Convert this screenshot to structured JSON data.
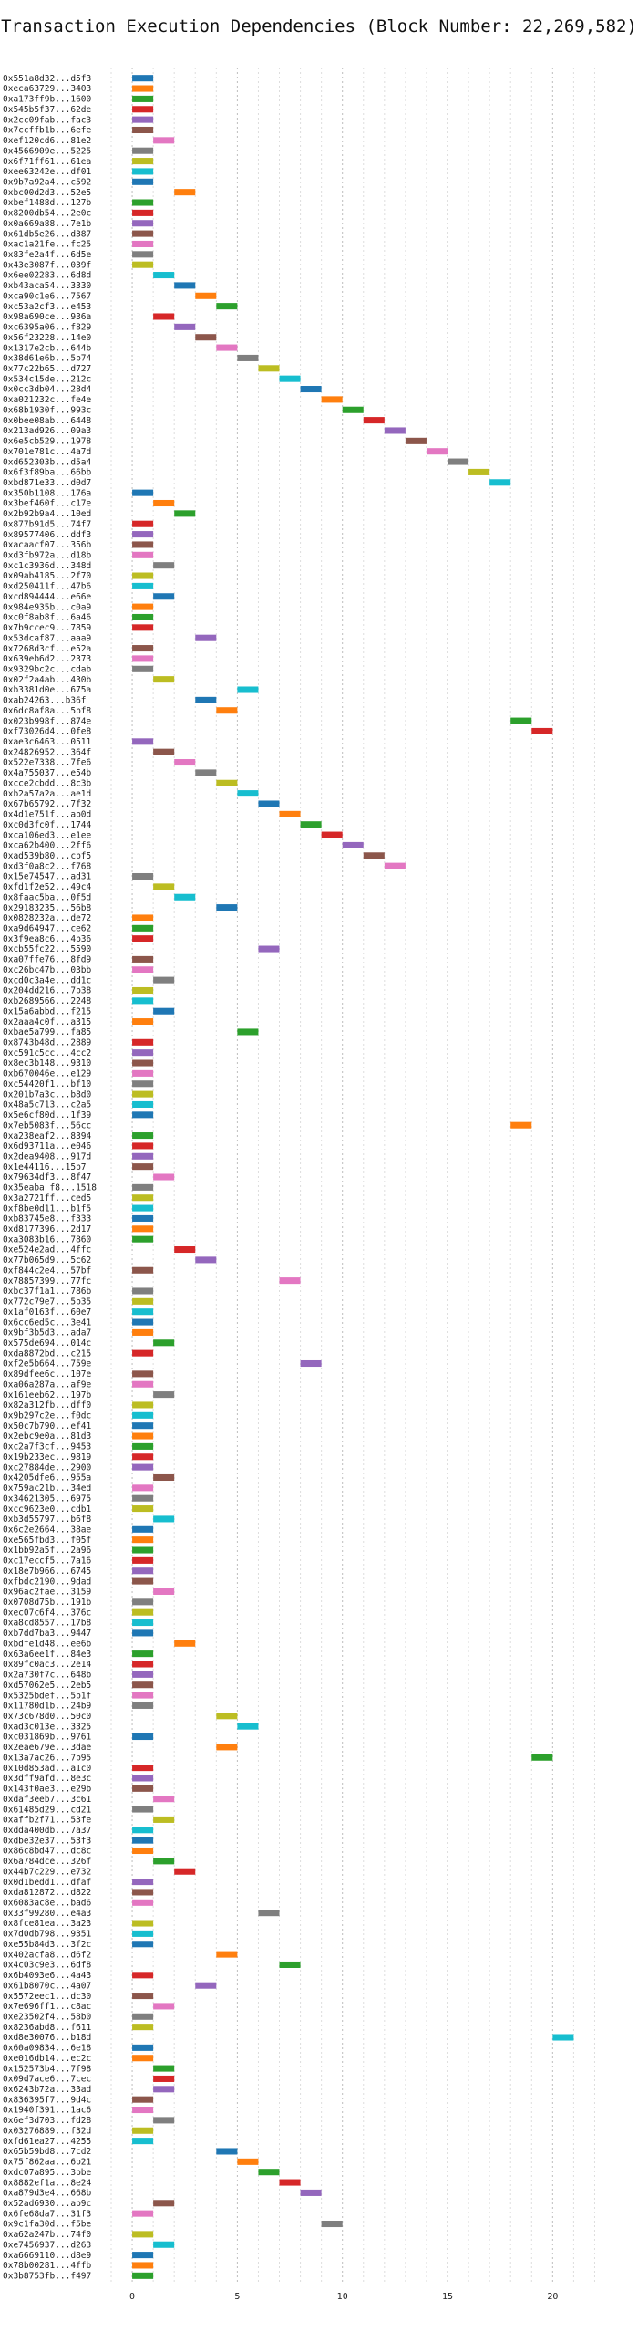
{
  "title": "Transaction Execution Dependencies (Block Number: 22,269,582)",
  "chart_data": {
    "type": "bar",
    "orientation": "horizontal",
    "title": "Transaction Execution Dependencies (Block Number: 22,269,582)",
    "xlabel": "",
    "ylabel": "",
    "xlim": [
      -1,
      22.5
    ],
    "xticks": [
      0,
      5,
      10,
      15,
      20
    ],
    "grid": "vertical dotted",
    "legend": "none",
    "palette": [
      "#1f77b4",
      "#ff7f0e",
      "#2ca02c",
      "#d62728",
      "#9467bd",
      "#8c564b",
      "#e377c2",
      "#7f7f7f",
      "#bcbd22",
      "#17becf"
    ],
    "categories": [
      "0x551a8d32...d5f3",
      "0xeca63729...3403",
      "0xa173ff9b...1600",
      "0x545b5f37...62de",
      "0x2cc09fab...fac3",
      "0x7ccffb1b...6efe",
      "0xef120cd6...81e2",
      "0x4566909e...5225",
      "0x6f71ff61...61ea",
      "0xee63242e...df01",
      "0x9b7a92a4...c592",
      "0xbc00d2d3...52e5",
      "0xbef1488d...127b",
      "0x8200db54...2e0c",
      "0x0a669a88...7e1b",
      "0x61db5e26...d387",
      "0xac1a21fe...fc25",
      "0x83fe2a4f...6d5e",
      "0x43e3087f...039f",
      "0x6ee02283...6d8d",
      "0xb43aca54...3330",
      "0xca90c1e6...7567",
      "0xc53a2cf3...e453",
      "0x98a690ce...936a",
      "0xc6395a06...f829",
      "0x56f23228...14e0",
      "0x1317e2cb...644b",
      "0x38d61e6b...5b74",
      "0x77c22b65...d727",
      "0x534c15de...212c",
      "0x0cc3db04...28d4",
      "0xa021232c...fe4e",
      "0x68b1930f...993c",
      "0x0bee08ab...6448",
      "0x213ad926...09a3",
      "0x6e5cb529...1978",
      "0x701e781c...4a7d",
      "0xd652303b...d5a4",
      "0x6f3f89ba...66bb",
      "0xbd871e33...d0d7",
      "0x350b1108...176a",
      "0x3bef460f...c17e",
      "0x2b92b9a4...10ed",
      "0x877b91d5...74f7",
      "0x89577406...ddf3",
      "0xacaacf07...356b",
      "0xd3fb972a...d18b",
      "0xc1c3936d...348d",
      "0x09ab4185...2f70",
      "0xd250411f...47b6",
      "0xcd894444...e66e",
      "0x984e935b...c0a9",
      "0xc0f8ab8f...6a46",
      "0x7b9ccec9...7859",
      "0x53dcaf87...aaa9",
      "0x7268d3cf...e52a",
      "0x639eb6d2...2373",
      "0x9329bc2c...cdab",
      "0x02f2a4ab...430b",
      "0xb3381d0e...675a",
      "0xab24263...b36f",
      "0x6dc8af8a...5bf8",
      "0x023b998f...874e",
      "0xf73026d4...0fe8",
      "0xae3c6463...0511",
      "0x24826952...364f",
      "0x522e7338...7fe6",
      "0x4a755037...e54b",
      "0xcce2cbdd...8c3b",
      "0xb2a57a2a...ae1d",
      "0x67b65792...7f32",
      "0x4d1e751f...ab0d",
      "0xc0d3fc0f...1744",
      "0xca106ed3...e1ee",
      "0xca62b400...2ff6",
      "0xad539b80...cbf5",
      "0xd3f0a8c2...f768",
      "0x15e74547...ad31",
      "0xfd1f2e52...49c4",
      "0x8faac5ba...0f5d",
      "0x29183235...56b8",
      "0x0828232a...de72",
      "0xa9d64947...ce62",
      "0x3f9ea8c6...4b36",
      "0xcb55fc22...5590",
      "0xa07ffe76...8fd9",
      "0xc26bc47b...03bb",
      "0xcd0c3a4e...dd1c",
      "0x204dd216...7b38",
      "0xb2689566...2248",
      "0x15a6abbd...f215",
      "0x2aaa4c0f...a315",
      "0xbae5a799...fa85",
      "0x8743b48d...2889",
      "0xc591c5cc...4cc2",
      "0x8ec3b148...9310",
      "0xb670046e...e129",
      "0xc54420f1...bf10",
      "0x201b7a3c...b8d0",
      "0x48a5c713...c2a5",
      "0x5e6cf80d...1f39",
      "0x7eb5083f...56cc",
      "0xa238eaf2...8394",
      "0x6d93711a...e046",
      "0x2dea9408...917d",
      "0x1e44116...15b7",
      "0x79634df3...8f47",
      "0x35eaba f8...1518",
      "0x3a2721ff...ced5",
      "0xf8be0d11...b1f5",
      "0xb83745e8...f333",
      "0xd8177396...2d17",
      "0xa3083b16...7860",
      "0xe524e2ad...4ffc",
      "0x77b065d9...5c62",
      "0xf844c2e4...57bf",
      "0x78857399...77fc",
      "0xbc37f1a1...786b",
      "0x772c79e7...5b35",
      "0x1af0163f...60e7",
      "0x6cc6ed5c...3e41",
      "0x9bf3b5d3...ada7",
      "0x575de694...014c",
      "0xda8872bd...c215",
      "0xf2e5b664...759e",
      "0x89dfee6c...107e",
      "0xa06a287a...af9e",
      "0x161eeb62...197b",
      "0x82a312fb...dff0",
      "0x9b297c2e...f0dc",
      "0x50c7b790...ef41",
      "0x2ebc9e0a...81d3",
      "0xc2a7f3cf...9453",
      "0x19b233ec...9819",
      "0xc27884de...2900",
      "0x4205dfe6...955a",
      "0x759ac21b...34ed",
      "0x34621305...6975",
      "0xcc9623e0...cdb1",
      "0xb3d55797...b6f8",
      "0x6c2e2664...38ae",
      "0xe565fbd3...f05f",
      "0x1bb92a5f...2a96",
      "0xc17eccf5...7a16",
      "0x18e7b966...6745",
      "0xfbdc2190...9dad",
      "0x96ac2fae...3159",
      "0x0708d75b...191b",
      "0xec07c6f4...376c",
      "0xa8cd8557...17b8",
      "0xb7dd7ba3...9447",
      "0xbdfe1d48...ee6b",
      "0x63a6ee1f...84e3",
      "0x89fc0ac3...2e14",
      "0x2a730f7c...648b",
      "0xd57062e5...2eb5",
      "0x5325bdef...5b1f",
      "0x11780d1b...24b9",
      "0x73c678d0...50c0",
      "0xad3c013e...3325",
      "0xc031869b...9761",
      "0x2eae679e...3dae",
      "0x13a7ac26...7b95",
      "0x10d853ad...a1c0",
      "0x3dff9afd...8e3c",
      "0x143f0ae3...e29b",
      "0xdaf3eeb7...3c61",
      "0x61485d29...cd21",
      "0xaffb2f71...53fe",
      "0xdda400db...7a37",
      "0xdbe32e37...53f3",
      "0x86c8bd47...dc8c",
      "0x6a784dce...326f",
      "0x44b7c229...e732",
      "0x0d1bedd1...dfaf",
      "0xda812872...d822",
      "0x6083ac8e...bad6",
      "0x33f99280...e4a3",
      "0x8fce81ea...3a23",
      "0x7d0db798...9351",
      "0xe55b84d3...3f2c",
      "0x402acfa8...d6f2",
      "0x4c03c9e3...6df8",
      "0x6b4093e6...4a43",
      "0x61b8070c...4a07",
      "0x5572eec1...dc30",
      "0x7e696ff1...c8ac",
      "0xe23502f4...58b0",
      "0x8236abd8...f611",
      "0xd8e30076...b18d",
      "0x60a09834...6e18",
      "0xe016db14...ec2c",
      "0x152573b4...7f98",
      "0x09d7ace6...7cec",
      "0x6243b72a...33ad",
      "0x836395f7...9d4c",
      "0x1940f391...1ac6",
      "0x6ef3d703...fd28",
      "0x03276889...f32d",
      "0xfd61ea27...4255",
      "0x65b59bd8...7cd2",
      "0x75f862aa...6b21",
      "0xdc07a895...3bbe",
      "0x8882ef1a...8e24",
      "0xa879d3e4...668b",
      "0x52ad6930...ab9c",
      "0x6fe68da7...31f3",
      "0x9c1fa30d...f5be",
      "0xa62a247b...74f0",
      "0xe7456937...d263",
      "0xa6669110...d8e9",
      "0x78b00281...4ffb",
      "0x3b8753fb...f497"
    ],
    "series": [
      {
        "starts": [
          0,
          0,
          0,
          0,
          0,
          0,
          1,
          0,
          0,
          0,
          0,
          2,
          0,
          0,
          0,
          0,
          0,
          0,
          0,
          1,
          2,
          3,
          4,
          1,
          2,
          3,
          4,
          5,
          6,
          7,
          8,
          9,
          10,
          11,
          12,
          13,
          14,
          15,
          16,
          17,
          0,
          1,
          2,
          0,
          0,
          0,
          0,
          1,
          0,
          0,
          1,
          0,
          0,
          0,
          3,
          0,
          0,
          0,
          1,
          5,
          3,
          4,
          18,
          19,
          0,
          1,
          2,
          3,
          4,
          5,
          6,
          7,
          8,
          9,
          10,
          11,
          12,
          0,
          1,
          2,
          4,
          0,
          0,
          0,
          6,
          0,
          0,
          1,
          0,
          0,
          1,
          0,
          5,
          0,
          0,
          0,
          0,
          0,
          0,
          0,
          0,
          18,
          0,
          0,
          0,
          0,
          1,
          0,
          0,
          0,
          0,
          0,
          0,
          2,
          3,
          0,
          7,
          0,
          0,
          0,
          0,
          0,
          1,
          0,
          8,
          0,
          0,
          1,
          0,
          0,
          0,
          0,
          0,
          0,
          0,
          1,
          0,
          0,
          0,
          1,
          0,
          0,
          0,
          0,
          0,
          0,
          1,
          0,
          0,
          0,
          0,
          2,
          0,
          0,
          0,
          0,
          0,
          0,
          4,
          5,
          0,
          4,
          19,
          0,
          0,
          0,
          1,
          0,
          1,
          0,
          0,
          0,
          1,
          2,
          0,
          0,
          0,
          6,
          0,
          0,
          0,
          4,
          7,
          0,
          3,
          0,
          1,
          0,
          0,
          20,
          0,
          0,
          1,
          1,
          1,
          0,
          0,
          1,
          0,
          0,
          4,
          5,
          6,
          7,
          8,
          1,
          0,
          9,
          0,
          1,
          0,
          0,
          0
        ],
        "durations": [
          1,
          1,
          1,
          1,
          1,
          1,
          1,
          1,
          1,
          1,
          1,
          1,
          1,
          1,
          1,
          1,
          1,
          1,
          1,
          1,
          1,
          1,
          1,
          1,
          1,
          1,
          1,
          1,
          1,
          1,
          1,
          1,
          1,
          1,
          1,
          1,
          1,
          1,
          1,
          1,
          1,
          1,
          1,
          1,
          1,
          1,
          1,
          1,
          1,
          1,
          1,
          1,
          1,
          1,
          1,
          1,
          1,
          1,
          1,
          1,
          1,
          1,
          1,
          1,
          1,
          1,
          1,
          1,
          1,
          1,
          1,
          1,
          1,
          1,
          1,
          1,
          1,
          1,
          1,
          1,
          1,
          1,
          1,
          1,
          1,
          1,
          1,
          1,
          1,
          1,
          1,
          1,
          1,
          1,
          1,
          1,
          1,
          1,
          1,
          1,
          1,
          1,
          1,
          1,
          1,
          1,
          1,
          1,
          1,
          1,
          1,
          1,
          1,
          1,
          1,
          1,
          1,
          1,
          1,
          1,
          1,
          1,
          1,
          1,
          1,
          1,
          1,
          1,
          1,
          1,
          1,
          1,
          1,
          1,
          1,
          1,
          1,
          1,
          1,
          1,
          1,
          1,
          1,
          1,
          1,
          1,
          1,
          1,
          1,
          1,
          1,
          1,
          1,
          1,
          1,
          1,
          1,
          1,
          1,
          1,
          1,
          1,
          1,
          1,
          1,
          1,
          1,
          1,
          1,
          1,
          1,
          1,
          1,
          1,
          1,
          1,
          1,
          1,
          1,
          1,
          1,
          1,
          1,
          1,
          1,
          1,
          1,
          1,
          1,
          1,
          1,
          1,
          1,
          1,
          1,
          1,
          1,
          1,
          1,
          1,
          1,
          1,
          1,
          1,
          1,
          1,
          1,
          1,
          1,
          1,
          1,
          1,
          1
        ],
        "colors": [
          "#1f77b4",
          "#ff7f0e",
          "#2ca02c",
          "#d62728",
          "#9467bd",
          "#8c564b",
          "#e377c2",
          "#7f7f7f",
          "#bcbd22",
          "#17becf",
          "#1f77b4",
          "#ff7f0e",
          "#2ca02c",
          "#d62728",
          "#9467bd",
          "#8c564b",
          "#e377c2",
          "#7f7f7f",
          "#bcbd22",
          "#17becf",
          "#1f77b4",
          "#ff7f0e",
          "#2ca02c",
          "#d62728",
          "#9467bd",
          "#8c564b",
          "#e377c2",
          "#7f7f7f",
          "#bcbd22",
          "#17becf",
          "#1f77b4",
          "#ff7f0e",
          "#2ca02c",
          "#d62728",
          "#9467bd",
          "#8c564b",
          "#e377c2",
          "#7f7f7f",
          "#bcbd22",
          "#17becf",
          "#1f77b4",
          "#ff7f0e",
          "#2ca02c",
          "#d62728",
          "#9467bd",
          "#8c564b",
          "#e377c2",
          "#7f7f7f",
          "#bcbd22",
          "#17becf",
          "#1f77b4",
          "#ff7f0e",
          "#2ca02c",
          "#d62728",
          "#9467bd",
          "#8c564b",
          "#e377c2",
          "#7f7f7f",
          "#bcbd22",
          "#17becf",
          "#1f77b4",
          "#ff7f0e",
          "#2ca02c",
          "#d62728",
          "#9467bd",
          "#8c564b",
          "#e377c2",
          "#7f7f7f",
          "#bcbd22",
          "#17becf",
          "#1f77b4",
          "#ff7f0e",
          "#2ca02c",
          "#d62728",
          "#9467bd",
          "#8c564b",
          "#e377c2",
          "#7f7f7f",
          "#bcbd22",
          "#17becf",
          "#1f77b4",
          "#ff7f0e",
          "#2ca02c",
          "#d62728",
          "#9467bd",
          "#8c564b",
          "#e377c2",
          "#7f7f7f",
          "#bcbd22",
          "#17becf",
          "#1f77b4",
          "#ff7f0e",
          "#2ca02c",
          "#d62728",
          "#9467bd",
          "#8c564b",
          "#e377c2",
          "#7f7f7f",
          "#bcbd22",
          "#17becf",
          "#1f77b4",
          "#ff7f0e",
          "#2ca02c",
          "#d62728",
          "#9467bd",
          "#8c564b",
          "#e377c2",
          "#7f7f7f",
          "#bcbd22",
          "#17becf",
          "#1f77b4",
          "#ff7f0e",
          "#2ca02c",
          "#d62728",
          "#9467bd",
          "#8c564b",
          "#e377c2",
          "#7f7f7f",
          "#bcbd22",
          "#17becf",
          "#1f77b4",
          "#ff7f0e",
          "#2ca02c",
          "#d62728",
          "#9467bd",
          "#8c564b",
          "#e377c2",
          "#7f7f7f",
          "#bcbd22",
          "#17becf",
          "#1f77b4",
          "#ff7f0e",
          "#2ca02c",
          "#d62728",
          "#9467bd",
          "#8c564b",
          "#e377c2",
          "#7f7f7f",
          "#bcbd22",
          "#17becf",
          "#1f77b4",
          "#ff7f0e",
          "#2ca02c",
          "#d62728",
          "#9467bd",
          "#8c564b",
          "#e377c2",
          "#7f7f7f",
          "#bcbd22",
          "#17becf",
          "#1f77b4",
          "#ff7f0e",
          "#2ca02c",
          "#d62728",
          "#9467bd",
          "#8c564b",
          "#e377c2",
          "#7f7f7f",
          "#bcbd22",
          "#17becf",
          "#1f77b4",
          "#ff7f0e",
          "#2ca02c",
          "#d62728",
          "#9467bd",
          "#8c564b",
          "#e377c2",
          "#7f7f7f",
          "#bcbd22",
          "#17becf",
          "#1f77b4",
          "#ff7f0e",
          "#2ca02c",
          "#d62728",
          "#9467bd",
          "#8c564b",
          "#e377c2",
          "#7f7f7f",
          "#bcbd22",
          "#17becf",
          "#1f77b4",
          "#ff7f0e",
          "#2ca02c",
          "#d62728",
          "#9467bd",
          "#8c564b",
          "#e377c2",
          "#7f7f7f",
          "#bcbd22",
          "#17becf",
          "#1f77b4",
          "#ff7f0e",
          "#2ca02c",
          "#d62728",
          "#9467bd",
          "#8c564b",
          "#e377c2",
          "#7f7f7f",
          "#bcbd22",
          "#17becf",
          "#1f77b4",
          "#ff7f0e",
          "#2ca02c",
          "#d62728",
          "#9467bd",
          "#8c564b",
          "#e377c2",
          "#7f7f7f",
          "#bcbd22",
          "#17becf",
          "#1f77b4",
          "#ff7f0e",
          "#2ca02c"
        ]
      }
    ]
  }
}
